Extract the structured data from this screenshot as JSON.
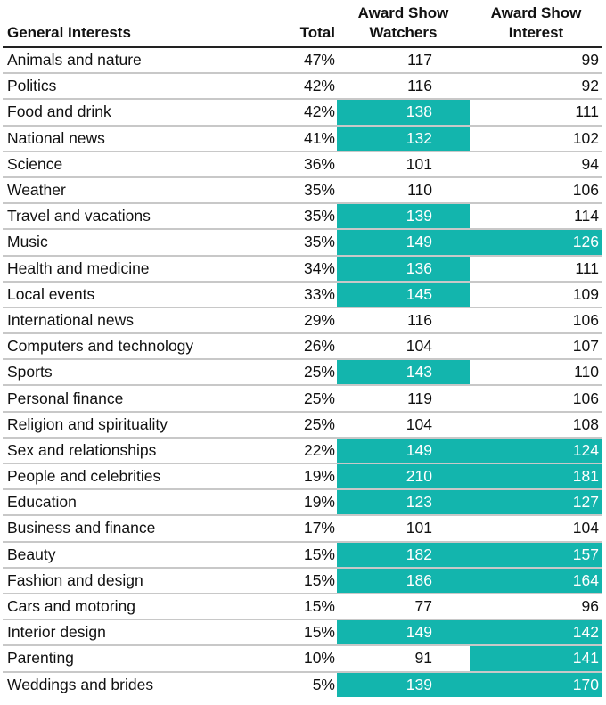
{
  "colors": {
    "highlight": "#13b5ad",
    "highlight_text": "#ffffff"
  },
  "table": {
    "headers": {
      "interest": "General Interests",
      "total": "Total",
      "watchers_line1": "Award Show",
      "watchers_line2": "Watchers",
      "interest_col_line1": "Award Show",
      "interest_col_line2": "Interest"
    },
    "rows": [
      {
        "name": "Animals and nature",
        "total": "47%",
        "watchers": "117",
        "watchers_hi": false,
        "interest": "99",
        "interest_hi": false
      },
      {
        "name": "Politics",
        "total": "42%",
        "watchers": "116",
        "watchers_hi": false,
        "interest": "92",
        "interest_hi": false
      },
      {
        "name": "Food and drink",
        "total": "42%",
        "watchers": "138",
        "watchers_hi": true,
        "interest": "111",
        "interest_hi": false
      },
      {
        "name": "National news",
        "total": "41%",
        "watchers": "132",
        "watchers_hi": true,
        "interest": "102",
        "interest_hi": false
      },
      {
        "name": "Science",
        "total": "36%",
        "watchers": "101",
        "watchers_hi": false,
        "interest": "94",
        "interest_hi": false
      },
      {
        "name": "Weather",
        "total": "35%",
        "watchers": "110",
        "watchers_hi": false,
        "interest": "106",
        "interest_hi": false
      },
      {
        "name": "Travel and vacations",
        "total": "35%",
        "watchers": "139",
        "watchers_hi": true,
        "interest": "114",
        "interest_hi": false
      },
      {
        "name": "Music",
        "total": "35%",
        "watchers": "149",
        "watchers_hi": true,
        "interest": "126",
        "interest_hi": true
      },
      {
        "name": "Health and medicine",
        "total": "34%",
        "watchers": "136",
        "watchers_hi": true,
        "interest": "111",
        "interest_hi": false
      },
      {
        "name": "Local events",
        "total": "33%",
        "watchers": "145",
        "watchers_hi": true,
        "interest": "109",
        "interest_hi": false
      },
      {
        "name": "International news",
        "total": "29%",
        "watchers": "116",
        "watchers_hi": false,
        "interest": "106",
        "interest_hi": false
      },
      {
        "name": "Computers and technology",
        "total": "26%",
        "watchers": "104",
        "watchers_hi": false,
        "interest": "107",
        "interest_hi": false
      },
      {
        "name": "Sports",
        "total": "25%",
        "watchers": "143",
        "watchers_hi": true,
        "interest": "110",
        "interest_hi": false
      },
      {
        "name": "Personal finance",
        "total": "25%",
        "watchers": "119",
        "watchers_hi": false,
        "interest": "106",
        "interest_hi": false
      },
      {
        "name": "Religion and spirituality",
        "total": "25%",
        "watchers": "104",
        "watchers_hi": false,
        "interest": "108",
        "interest_hi": false
      },
      {
        "name": "Sex and relationships",
        "total": "22%",
        "watchers": "149",
        "watchers_hi": true,
        "interest": "124",
        "interest_hi": true
      },
      {
        "name": "People and celebrities",
        "total": "19%",
        "watchers": "210",
        "watchers_hi": true,
        "interest": "181",
        "interest_hi": true
      },
      {
        "name": "Education",
        "total": "19%",
        "watchers": "123",
        "watchers_hi": true,
        "interest": "127",
        "interest_hi": true
      },
      {
        "name": "Business and finance",
        "total": "17%",
        "watchers": "101",
        "watchers_hi": false,
        "interest": "104",
        "interest_hi": false
      },
      {
        "name": "Beauty",
        "total": "15%",
        "watchers": "182",
        "watchers_hi": true,
        "interest": "157",
        "interest_hi": true
      },
      {
        "name": "Fashion and design",
        "total": "15%",
        "watchers": "186",
        "watchers_hi": true,
        "interest": "164",
        "interest_hi": true
      },
      {
        "name": "Cars and motoring",
        "total": "15%",
        "watchers": "77",
        "watchers_hi": false,
        "interest": "96",
        "interest_hi": false
      },
      {
        "name": "Interior design",
        "total": "15%",
        "watchers": "149",
        "watchers_hi": true,
        "interest": "142",
        "interest_hi": true
      },
      {
        "name": "Parenting",
        "total": "10%",
        "watchers": "91",
        "watchers_hi": false,
        "interest": "141",
        "interest_hi": true
      },
      {
        "name": "Weddings and brides",
        "total": "5%",
        "watchers": "139",
        "watchers_hi": true,
        "interest": "170",
        "interest_hi": true
      }
    ]
  }
}
